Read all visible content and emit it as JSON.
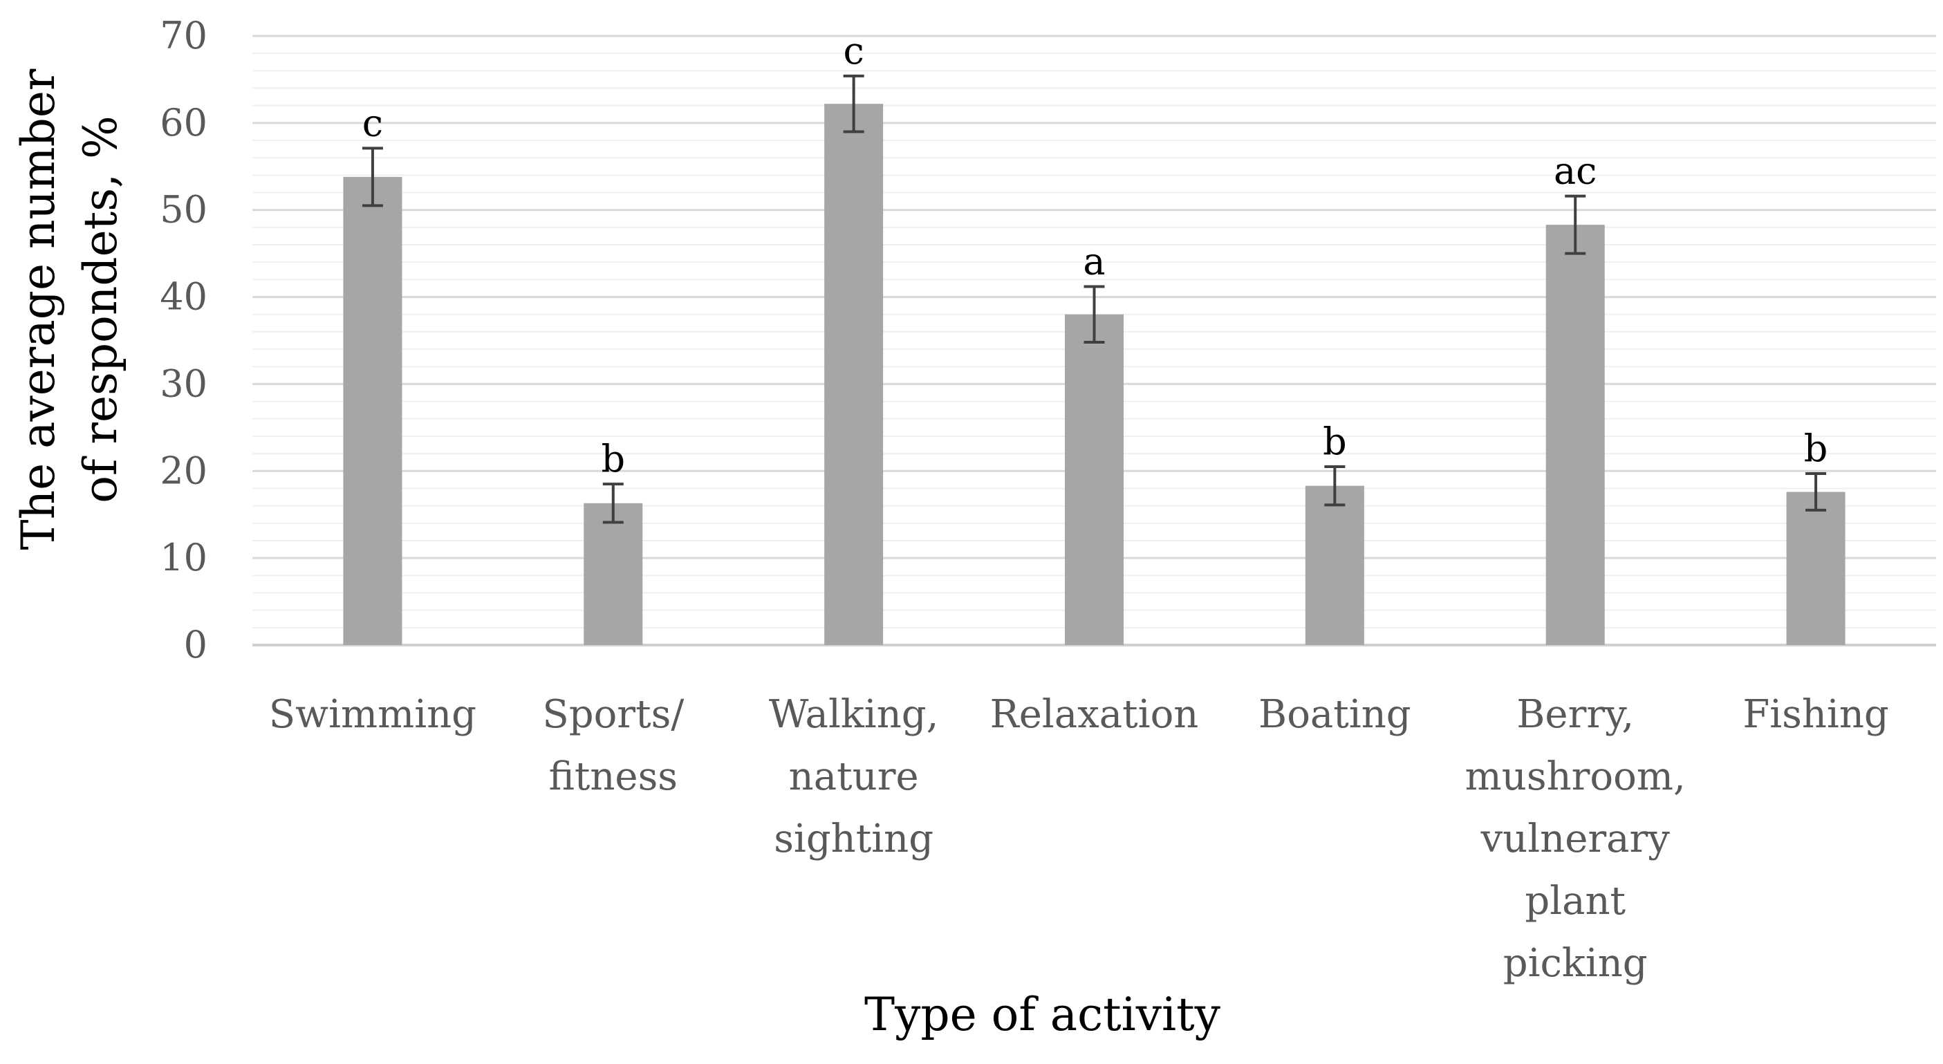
{
  "chart_data": {
    "type": "bar",
    "title": "",
    "xlabel": "Type of activity",
    "ylabel_lines": [
      "The average number",
      "of respondets, %"
    ],
    "ylim": [
      0,
      70
    ],
    "yticks": [
      0,
      10,
      20,
      30,
      40,
      50,
      60,
      70
    ],
    "grid": "horizontal major and minor",
    "categories": [
      [
        "Swimming"
      ],
      [
        "Sports/",
        "fitness"
      ],
      [
        "Walking,",
        "nature",
        "sighting"
      ],
      [
        "Relaxation"
      ],
      [
        "Boating"
      ],
      [
        "Berry,",
        "mushroom,",
        "vulnerary",
        "plant",
        "picking"
      ],
      [
        "Fishing"
      ]
    ],
    "values": [
      53.8,
      16.3,
      62.2,
      38.0,
      18.3,
      48.3,
      17.6
    ],
    "error": [
      3.3,
      2.2,
      3.2,
      3.2,
      2.2,
      3.3,
      2.1
    ],
    "significance_labels": [
      "c",
      "b",
      "c",
      "a",
      "b",
      "ac",
      "b"
    ],
    "colors": {
      "bar": "#a6a6a6",
      "error_bar": "#404040",
      "major_grid": "#d9d9d9",
      "minor_grid": "#efefef",
      "axis": "#d0d0d0",
      "tick_text": "#595959",
      "label_text": "#000000"
    }
  }
}
